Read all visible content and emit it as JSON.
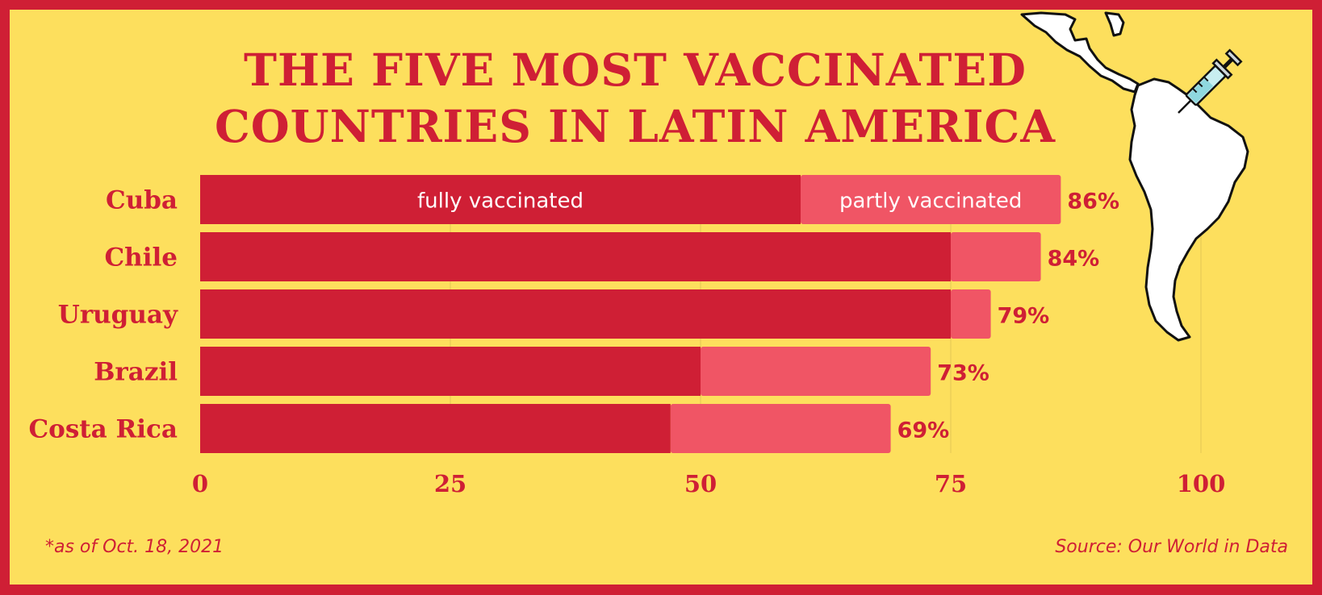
{
  "chart_data": {
    "type": "bar",
    "orientation": "horizontal",
    "stacked": true,
    "title_lines": [
      "THE FIVE MOST VACCINATED",
      "COUNTRIES IN LATIN AMERICA"
    ],
    "categories": [
      "Cuba",
      "Chile",
      "Uruguay",
      "Brazil",
      "Costa Rica"
    ],
    "series": [
      {
        "name": "fully vaccinated",
        "values": [
          60,
          75,
          75,
          50,
          47
        ],
        "color": "#cf1f35"
      },
      {
        "name": "partly vaccinated",
        "values": [
          26,
          9,
          4,
          23,
          22
        ],
        "color": "#f05565"
      }
    ],
    "totals": [
      86,
      84,
      79,
      73,
      69
    ],
    "total_labels": [
      "86%",
      "84%",
      "79%",
      "73%",
      "69%"
    ],
    "x_ticks": [
      "0",
      "25",
      "50",
      "75",
      "100"
    ],
    "x_tick_values": [
      0,
      25,
      50,
      75,
      100
    ],
    "xlim": [
      0,
      100
    ],
    "grid": true,
    "legend": "inline labels inside top bar"
  },
  "footnote": "*as of Oct. 18, 2021",
  "source": "Source: Our World in Data",
  "colors": {
    "background": "#fddf5d",
    "frame": "#cf1f35",
    "accent": "#cf1f35",
    "accent_light": "#f05565",
    "text_on_bar": "#ffffff"
  },
  "illustration": {
    "icon": "latin-america-map-with-syringe-icon"
  }
}
